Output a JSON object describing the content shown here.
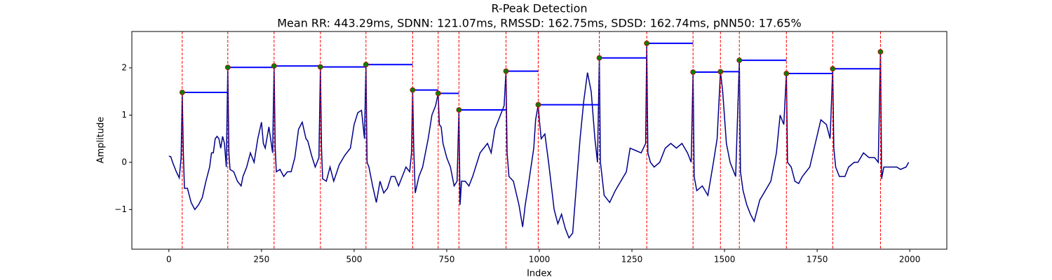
{
  "chart_data": {
    "type": "line",
    "title": "R-Peak Detection",
    "subtitle": "Mean RR: 443.29ms, SDNN: 121.07ms, RMSSD: 162.75ms, SDSD: 162.74ms, pNN50: 17.65%",
    "xlabel": "Index",
    "ylabel": "Amplitude",
    "xlim": [
      -100,
      2100
    ],
    "ylim": [
      -1.84,
      2.77
    ],
    "xticks": [
      0,
      250,
      500,
      750,
      1000,
      1250,
      1500,
      1750,
      2000
    ],
    "yticks": [
      {
        "value": -1,
        "label": "−1"
      },
      0,
      1,
      2
    ],
    "signal": {
      "color": "#00008b",
      "x": [
        0,
        5,
        10,
        20,
        28,
        33,
        36,
        39,
        42,
        50,
        60,
        70,
        80,
        90,
        100,
        110,
        115,
        120,
        125,
        130,
        135,
        140,
        145,
        150,
        155,
        159,
        162,
        165,
        175,
        185,
        195,
        200,
        210,
        220,
        230,
        240,
        250,
        255,
        260,
        270,
        280,
        284,
        287,
        290,
        300,
        310,
        320,
        330,
        340,
        350,
        360,
        370,
        375,
        385,
        395,
        405,
        409,
        412,
        415,
        425,
        435,
        445,
        460,
        475,
        490,
        500,
        510,
        520,
        528,
        532,
        535,
        540,
        550,
        560,
        570,
        580,
        590,
        600,
        610,
        620,
        630,
        640,
        650,
        655,
        658,
        661,
        665,
        675,
        685,
        690,
        700,
        710,
        720,
        727,
        730,
        735,
        740,
        750,
        760,
        770,
        778,
        783,
        786,
        790,
        800,
        810,
        820,
        840,
        860,
        870,
        880,
        895,
        905,
        910,
        913,
        918,
        930,
        945,
        955,
        962,
        970,
        985,
        990,
        997,
        1000,
        1005,
        1015,
        1025,
        1040,
        1050,
        1060,
        1070,
        1080,
        1090,
        1100,
        1110,
        1120,
        1130,
        1140,
        1150,
        1157,
        1162,
        1165,
        1175,
        1190,
        1205,
        1220,
        1235,
        1245,
        1260,
        1275,
        1287,
        1290,
        1293,
        1300,
        1310,
        1325,
        1340,
        1355,
        1370,
        1385,
        1400,
        1410,
        1415,
        1418,
        1425,
        1440,
        1455,
        1470,
        1480,
        1489,
        1495,
        1505,
        1515,
        1530,
        1540,
        1543,
        1550,
        1560,
        1570,
        1580,
        1595,
        1610,
        1625,
        1640,
        1650,
        1660,
        1667,
        1670,
        1680,
        1690,
        1700,
        1710,
        1730,
        1745,
        1760,
        1775,
        1785,
        1792,
        1795,
        1800,
        1810,
        1825,
        1835,
        1850,
        1860,
        1875,
        1890,
        1905,
        1915,
        1921,
        1924,
        1930,
        1950,
        1965,
        1975,
        1990,
        1997
      ],
      "values": [
        0.13,
        0.12,
        0.0,
        -0.2,
        -0.33,
        0.1,
        1.48,
        0.2,
        -0.55,
        -0.55,
        -0.85,
        -1.0,
        -0.9,
        -0.75,
        -0.4,
        -0.1,
        0.2,
        0.2,
        0.5,
        0.55,
        0.5,
        0.3,
        0.55,
        0.4,
        -0.1,
        2.01,
        0.2,
        -0.15,
        -0.2,
        -0.4,
        -0.5,
        -0.3,
        -0.1,
        0.2,
        0.0,
        0.5,
        0.85,
        0.4,
        0.3,
        0.75,
        0.2,
        2.04,
        0.3,
        -0.2,
        -0.15,
        -0.3,
        -0.2,
        -0.2,
        0.1,
        0.7,
        0.85,
        0.5,
        0.45,
        0.15,
        -0.1,
        0.1,
        2.02,
        0.3,
        -0.35,
        -0.4,
        -0.1,
        -0.4,
        -0.05,
        0.15,
        0.3,
        0.8,
        1.05,
        1.1,
        0.5,
        2.07,
        0.0,
        -0.1,
        -0.5,
        -0.85,
        -0.4,
        -0.65,
        -0.55,
        -0.3,
        -0.3,
        -0.5,
        -0.3,
        -0.1,
        -0.2,
        0.2,
        1.53,
        0.3,
        -0.65,
        -0.3,
        -0.1,
        0.1,
        0.5,
        1.0,
        1.2,
        1.46,
        0.8,
        0.75,
        0.4,
        0.1,
        -0.1,
        -0.5,
        -0.4,
        1.11,
        -0.9,
        -0.4,
        -0.4,
        -0.5,
        -0.3,
        0.2,
        0.4,
        0.2,
        0.7,
        1.0,
        1.2,
        1.93,
        0.2,
        -0.3,
        -0.4,
        -0.9,
        -1.37,
        -0.9,
        -0.5,
        0.3,
        0.9,
        1.22,
        0.9,
        0.5,
        0.6,
        0.0,
        -1.0,
        -1.3,
        -1.1,
        -1.4,
        -1.6,
        -1.5,
        -0.5,
        0.5,
        1.3,
        1.9,
        1.5,
        0.5,
        0.0,
        2.21,
        0.0,
        -0.7,
        -0.85,
        -0.6,
        -0.4,
        -0.2,
        0.3,
        0.25,
        0.2,
        0.4,
        2.52,
        0.2,
        0.0,
        -0.1,
        0.0,
        0.3,
        0.4,
        0.3,
        0.4,
        0.2,
        0.0,
        1.91,
        -0.3,
        -0.6,
        -0.5,
        -0.7,
        0.0,
        0.5,
        1.92,
        1.5,
        0.4,
        0.0,
        -0.3,
        2.16,
        -0.2,
        -0.6,
        -0.9,
        -1.1,
        -1.25,
        -0.8,
        -0.6,
        -0.4,
        0.2,
        1.0,
        0.8,
        1.88,
        0.0,
        -0.1,
        -0.4,
        -0.45,
        -0.3,
        -0.1,
        0.4,
        0.9,
        0.8,
        0.5,
        1.98,
        0.3,
        -0.1,
        -0.3,
        -0.3,
        -0.1,
        0.0,
        0.0,
        0.2,
        0.1,
        0.1,
        0.0,
        2.34,
        -0.35,
        -0.1,
        -0.1,
        -0.1,
        -0.15,
        -0.1,
        0.0
      ]
    },
    "peaks": {
      "color": "#008000",
      "edge_color": "#cc0000",
      "line_color": "#ff0000",
      "segment_color": "#0000ff",
      "x": [
        36,
        159,
        284,
        409,
        532,
        658,
        727,
        783,
        910,
        997,
        1162,
        1290,
        1415,
        1489,
        1540,
        1667,
        1792,
        1921
      ],
      "values": [
        1.48,
        2.01,
        2.04,
        2.02,
        2.07,
        1.53,
        1.46,
        1.11,
        1.93,
        1.22,
        2.21,
        2.52,
        1.91,
        1.92,
        2.16,
        1.88,
        1.98,
        2.34
      ]
    }
  }
}
